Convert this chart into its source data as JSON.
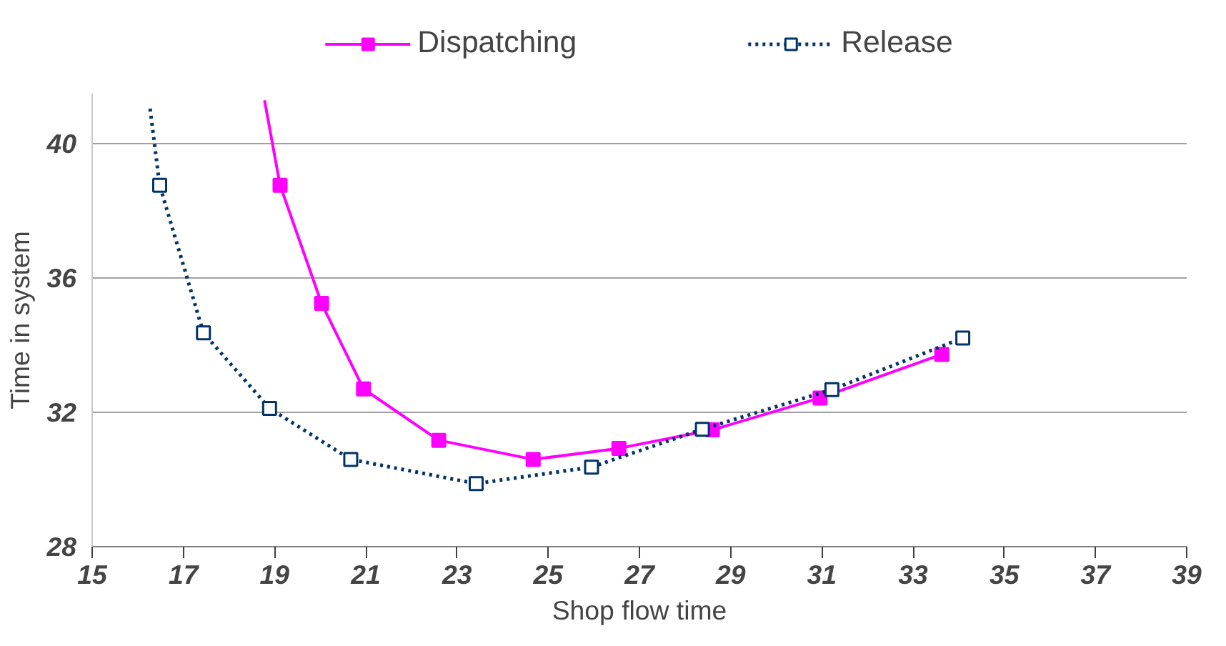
{
  "chart_data": {
    "type": "line",
    "xlabel": "Shop flow time",
    "ylabel": "Time in system",
    "xlim": [
      15,
      39
    ],
    "xticks": [
      15,
      17,
      19,
      21,
      23,
      25,
      27,
      29,
      31,
      33,
      35,
      37,
      39
    ],
    "ylim": [
      28,
      41.5
    ],
    "yticks": [
      28,
      32,
      36,
      40
    ],
    "grid": "y",
    "legend": "top",
    "marker": "square",
    "series": [
      {
        "name": "Dispatching",
        "color": "#ff00ff",
        "line_style": "solid",
        "x": [
          18.78,
          19.12,
          20.03,
          20.95,
          22.6,
          24.67,
          26.55,
          28.6,
          30.96,
          33.63
        ],
        "values": [
          41.3,
          38.77,
          35.25,
          32.7,
          31.17,
          30.6,
          30.93,
          31.48,
          32.43,
          33.73
        ]
      },
      {
        "name": "Release",
        "color": "#003366",
        "line_style": "dotted",
        "x": [
          16.27,
          16.48,
          17.44,
          18.89,
          20.67,
          23.42,
          25.95,
          28.38,
          31.22,
          34.09
        ],
        "values": [
          41.05,
          38.77,
          34.37,
          32.12,
          30.6,
          29.88,
          30.37,
          31.5,
          32.68,
          34.22
        ]
      }
    ]
  }
}
